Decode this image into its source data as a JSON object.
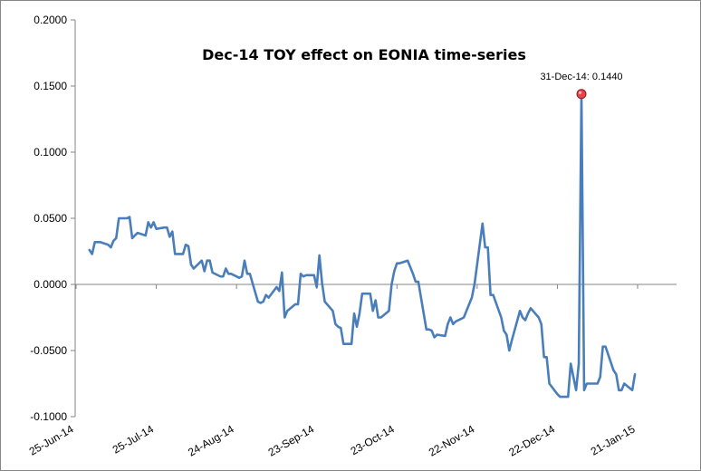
{
  "chart_data": {
    "type": "line",
    "title": "Dec-14 TOY effect on EONIA time-series",
    "xlabel": "",
    "ylabel": "",
    "ylim": [
      -0.1,
      0.2
    ],
    "yticks": [
      0.2,
      0.15,
      0.1,
      0.05,
      0.0,
      -0.05,
      -0.1
    ],
    "ytick_labels": [
      "0.2000",
      "0.1500",
      "0.1000",
      "0.0500",
      "0.0000",
      "-0.0500",
      "-0.1000"
    ],
    "xlim": [
      "2014-06-25",
      "2015-01-21"
    ],
    "xtick_labels": [
      "25-Jun-14",
      "25-Jul-14",
      "24-Aug-14",
      "23-Sep-14",
      "23-Oct-14",
      "22-Nov-14",
      "22-Dec-14",
      "21-Jan-15"
    ],
    "xtick_dates": [
      "2014-06-25",
      "2014-07-25",
      "2014-08-24",
      "2014-09-23",
      "2014-10-23",
      "2014-11-22",
      "2014-12-22",
      "2015-01-21"
    ],
    "series": [
      {
        "color": "#4a7ebb",
        "points": [
          [
            "2014-06-30",
            0.026
          ],
          [
            "2014-07-01",
            0.023
          ],
          [
            "2014-07-02",
            0.032
          ],
          [
            "2014-07-03",
            0.032
          ],
          [
            "2014-07-04",
            0.032
          ],
          [
            "2014-07-07",
            0.03
          ],
          [
            "2014-07-08",
            0.028
          ],
          [
            "2014-07-09",
            0.033
          ],
          [
            "2014-07-10",
            0.035
          ],
          [
            "2014-07-11",
            0.05
          ],
          [
            "2014-07-14",
            0.05
          ],
          [
            "2014-07-15",
            0.051
          ],
          [
            "2014-07-16",
            0.035
          ],
          [
            "2014-07-17",
            0.037
          ],
          [
            "2014-07-18",
            0.039
          ],
          [
            "2014-07-21",
            0.037
          ],
          [
            "2014-07-22",
            0.047
          ],
          [
            "2014-07-23",
            0.043
          ],
          [
            "2014-07-24",
            0.047
          ],
          [
            "2014-07-25",
            0.042
          ],
          [
            "2014-07-28",
            0.043
          ],
          [
            "2014-07-29",
            0.043
          ],
          [
            "2014-07-30",
            0.036
          ],
          [
            "2014-07-31",
            0.04
          ],
          [
            "2014-08-01",
            0.023
          ],
          [
            "2014-08-04",
            0.023
          ],
          [
            "2014-08-05",
            0.03
          ],
          [
            "2014-08-06",
            0.029
          ],
          [
            "2014-08-07",
            0.015
          ],
          [
            "2014-08-08",
            0.012
          ],
          [
            "2014-08-11",
            0.018
          ],
          [
            "2014-08-12",
            0.01
          ],
          [
            "2014-08-13",
            0.018
          ],
          [
            "2014-08-14",
            0.018
          ],
          [
            "2014-08-15",
            0.009
          ],
          [
            "2014-08-18",
            0.006
          ],
          [
            "2014-08-19",
            0.006
          ],
          [
            "2014-08-20",
            0.012
          ],
          [
            "2014-08-21",
            0.008
          ],
          [
            "2014-08-22",
            0.008
          ],
          [
            "2014-08-25",
            0.005
          ],
          [
            "2014-08-26",
            0.006
          ],
          [
            "2014-08-27",
            0.018
          ],
          [
            "2014-08-28",
            0.008
          ],
          [
            "2014-08-29",
            0.008
          ],
          [
            "2014-09-01",
            -0.013
          ],
          [
            "2014-09-02",
            -0.014
          ],
          [
            "2014-09-03",
            -0.013
          ],
          [
            "2014-09-04",
            -0.008
          ],
          [
            "2014-09-05",
            -0.01
          ],
          [
            "2014-09-08",
            -0.002
          ],
          [
            "2014-09-09",
            -0.005
          ],
          [
            "2014-09-10",
            0.009
          ],
          [
            "2014-09-11",
            -0.025
          ],
          [
            "2014-09-12",
            -0.02
          ],
          [
            "2014-09-15",
            -0.015
          ],
          [
            "2014-09-16",
            -0.015
          ],
          [
            "2014-09-17",
            0.008
          ],
          [
            "2014-09-18",
            0.006
          ],
          [
            "2014-09-19",
            0.007
          ],
          [
            "2014-09-22",
            0.007
          ],
          [
            "2014-09-23",
            -0.002
          ],
          [
            "2014-09-24",
            0.022
          ],
          [
            "2014-09-25",
            0.001
          ],
          [
            "2014-09-26",
            -0.013
          ],
          [
            "2014-09-29",
            -0.02
          ],
          [
            "2014-09-30",
            -0.03
          ],
          [
            "2014-10-01",
            -0.032
          ],
          [
            "2014-10-02",
            -0.033
          ],
          [
            "2014-10-03",
            -0.045
          ],
          [
            "2014-10-06",
            -0.045
          ],
          [
            "2014-10-07",
            -0.022
          ],
          [
            "2014-10-08",
            -0.032
          ],
          [
            "2014-10-09",
            -0.022
          ],
          [
            "2014-10-10",
            -0.007
          ],
          [
            "2014-10-13",
            -0.007
          ],
          [
            "2014-10-14",
            -0.02
          ],
          [
            "2014-10-15",
            -0.012
          ],
          [
            "2014-10-16",
            -0.025
          ],
          [
            "2014-10-17",
            -0.025
          ],
          [
            "2014-10-20",
            -0.02
          ],
          [
            "2014-10-21",
            0.0
          ],
          [
            "2014-10-22",
            0.01
          ],
          [
            "2014-10-23",
            0.016
          ],
          [
            "2014-10-24",
            0.016
          ],
          [
            "2014-10-27",
            0.018
          ],
          [
            "2014-10-28",
            0.013
          ],
          [
            "2014-10-29",
            0.008
          ],
          [
            "2014-10-30",
            0.002
          ],
          [
            "2014-10-31",
            0.002
          ],
          [
            "2014-11-03",
            -0.034
          ],
          [
            "2014-11-04",
            -0.034
          ],
          [
            "2014-11-05",
            -0.035
          ],
          [
            "2014-11-06",
            -0.04
          ],
          [
            "2014-11-07",
            -0.038
          ],
          [
            "2014-11-10",
            -0.039
          ],
          [
            "2014-11-11",
            -0.03
          ],
          [
            "2014-11-12",
            -0.025
          ],
          [
            "2014-11-13",
            -0.03
          ],
          [
            "2014-11-14",
            -0.028
          ],
          [
            "2014-11-17",
            -0.025
          ],
          [
            "2014-11-18",
            -0.02
          ],
          [
            "2014-11-19",
            -0.015
          ],
          [
            "2014-11-20",
            -0.01
          ],
          [
            "2014-11-21",
            0.0
          ],
          [
            "2014-11-24",
            0.046
          ],
          [
            "2014-11-25",
            0.028
          ],
          [
            "2014-11-26",
            0.028
          ],
          [
            "2014-11-27",
            -0.008
          ],
          [
            "2014-11-28",
            -0.008
          ],
          [
            "2014-12-01",
            -0.025
          ],
          [
            "2014-12-02",
            -0.035
          ],
          [
            "2014-12-03",
            -0.038
          ],
          [
            "2014-12-04",
            -0.05
          ],
          [
            "2014-12-05",
            -0.042
          ],
          [
            "2014-12-08",
            -0.02
          ],
          [
            "2014-12-09",
            -0.025
          ],
          [
            "2014-12-10",
            -0.027
          ],
          [
            "2014-12-11",
            -0.022
          ],
          [
            "2014-12-12",
            -0.018
          ],
          [
            "2014-12-15",
            -0.025
          ],
          [
            "2014-12-16",
            -0.03
          ],
          [
            "2014-12-17",
            -0.055
          ],
          [
            "2014-12-18",
            -0.055
          ],
          [
            "2014-12-19",
            -0.075
          ],
          [
            "2014-12-22",
            -0.083
          ],
          [
            "2014-12-23",
            -0.085
          ],
          [
            "2014-12-24",
            -0.085
          ],
          [
            "2014-12-26",
            -0.085
          ],
          [
            "2014-12-27",
            -0.06
          ],
          [
            "2014-12-29",
            -0.08
          ],
          [
            "2014-12-30",
            -0.06
          ],
          [
            "2014-12-31",
            0.144
          ],
          [
            "2015-01-01",
            -0.08
          ],
          [
            "2015-01-02",
            -0.075
          ],
          [
            "2015-01-05",
            -0.075
          ],
          [
            "2015-01-06",
            -0.075
          ],
          [
            "2015-01-07",
            -0.07
          ],
          [
            "2015-01-08",
            -0.047
          ],
          [
            "2015-01-09",
            -0.047
          ],
          [
            "2015-01-12",
            -0.065
          ],
          [
            "2015-01-13",
            -0.068
          ],
          [
            "2015-01-14",
            -0.08
          ],
          [
            "2015-01-15",
            -0.08
          ],
          [
            "2015-01-16",
            -0.075
          ],
          [
            "2015-01-19",
            -0.08
          ],
          [
            "2015-01-20",
            -0.068
          ]
        ]
      }
    ],
    "annotations": [
      {
        "label": "31-Dec-14: 0.1440",
        "x": "2014-12-31",
        "y": 0.144
      }
    ],
    "grid": false,
    "legend": "none"
  }
}
